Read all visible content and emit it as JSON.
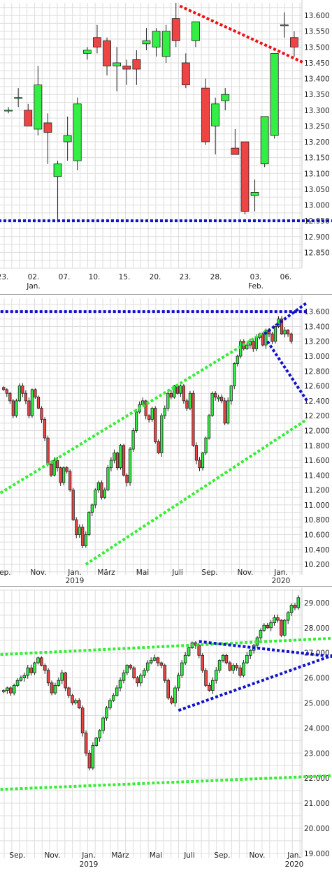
{
  "colors": {
    "up": "#33ee44",
    "down": "#ee4444",
    "grid": "#dddddd",
    "blue_line": "#1111cc",
    "green_line": "#33ee33",
    "red_line": "#ee1111"
  },
  "chart_data": [
    {
      "type": "candlestick",
      "ylim": [
        12.8,
        13.64
      ],
      "y_ticks": [
        "13.600",
        "13.550",
        "13.500",
        "13.450",
        "13.400",
        "13.350",
        "13.300",
        "13.250",
        "13.200",
        "13.150",
        "13.100",
        "13.050",
        "13.000",
        "12.950",
        "12.900",
        "12.850"
      ],
      "x_ticks": [
        {
          "label": "23.",
          "sub": ""
        },
        {
          "label": "02.",
          "sub": "Jan."
        },
        {
          "label": "07.",
          "sub": ""
        },
        {
          "label": "10.",
          "sub": ""
        },
        {
          "label": "15.",
          "sub": ""
        },
        {
          "label": "20.",
          "sub": ""
        },
        {
          "label": "23.",
          "sub": ""
        },
        {
          "label": "28.",
          "sub": ""
        },
        {
          "label": "03.",
          "sub": "Feb."
        },
        {
          "label": "06.",
          "sub": ""
        }
      ],
      "candles": [
        {
          "o": 13.3,
          "h": 13.31,
          "l": 13.29,
          "c": 13.3
        },
        {
          "o": 13.34,
          "h": 13.37,
          "l": 13.31,
          "c": 13.34
        },
        {
          "o": 13.3,
          "h": 13.32,
          "l": 13.25,
          "c": 13.25
        },
        {
          "o": 13.24,
          "h": 13.44,
          "l": 13.22,
          "c": 13.38
        },
        {
          "o": 13.26,
          "h": 13.29,
          "l": 13.13,
          "c": 13.23
        },
        {
          "o": 13.09,
          "h": 13.14,
          "l": 12.95,
          "c": 13.13
        },
        {
          "o": 13.2,
          "h": 13.28,
          "l": 13.14,
          "c": 13.22
        },
        {
          "o": 13.14,
          "h": 13.34,
          "l": 13.11,
          "c": 13.32
        },
        {
          "o": 13.48,
          "h": 13.5,
          "l": 13.46,
          "c": 13.49
        },
        {
          "o": 13.53,
          "h": 13.57,
          "l": 13.48,
          "c": 13.5
        },
        {
          "o": 13.52,
          "h": 13.53,
          "l": 13.41,
          "c": 13.44
        },
        {
          "o": 13.44,
          "h": 13.5,
          "l": 13.36,
          "c": 13.45
        },
        {
          "o": 13.44,
          "h": 13.46,
          "l": 13.38,
          "c": 13.43
        },
        {
          "o": 13.46,
          "h": 13.49,
          "l": 13.38,
          "c": 13.43
        },
        {
          "o": 13.51,
          "h": 13.56,
          "l": 13.49,
          "c": 13.52
        },
        {
          "o": 13.5,
          "h": 13.56,
          "l": 13.47,
          "c": 13.55
        },
        {
          "o": 13.47,
          "h": 13.57,
          "l": 13.45,
          "c": 13.55
        },
        {
          "o": 13.59,
          "h": 13.64,
          "l": 13.5,
          "c": 13.52
        },
        {
          "o": 13.45,
          "h": 13.48,
          "l": 13.37,
          "c": 13.38
        },
        {
          "o": 13.52,
          "h": 13.58,
          "l": 13.5,
          "c": 13.58
        },
        {
          "o": 13.37,
          "h": 13.4,
          "l": 13.19,
          "c": 13.2
        },
        {
          "o": 13.25,
          "h": 13.34,
          "l": 13.16,
          "c": 13.32
        },
        {
          "o": 13.33,
          "h": 13.37,
          "l": 13.3,
          "c": 13.35
        },
        {
          "o": 13.18,
          "h": 13.24,
          "l": 13.16,
          "c": 13.16
        },
        {
          "o": 13.2,
          "h": 13.2,
          "l": 12.97,
          "c": 12.98
        },
        {
          "o": 13.03,
          "h": 13.08,
          "l": 12.98,
          "c": 13.04
        },
        {
          "o": 13.13,
          "h": 13.28,
          "l": 13.12,
          "c": 13.28
        },
        {
          "o": 13.22,
          "h": 13.48,
          "l": 13.21,
          "c": 13.48
        },
        {
          "o": 13.57,
          "h": 13.61,
          "l": 13.53,
          "c": 13.57
        },
        {
          "o": 13.53,
          "h": 13.55,
          "l": 13.47,
          "c": 13.5
        }
      ],
      "trend_lines": [
        {
          "color": "blue",
          "points": [
            [
              -1,
              12.95
            ],
            [
              33,
              12.95
            ]
          ]
        },
        {
          "color": "red",
          "points": [
            [
              17.4,
              13.63
            ],
            [
              30,
              13.45
            ]
          ]
        }
      ]
    },
    {
      "type": "candlestick",
      "ylim": [
        10.06,
        13.78
      ],
      "y_ticks": [
        "13.600",
        "13.400",
        "13.200",
        "13.000",
        "12.800",
        "12.600",
        "12.400",
        "12.200",
        "12.000",
        "11.800",
        "11.600",
        "11.400",
        "11.200",
        "11.000",
        "10.800",
        "10.600",
        "10.400",
        "10.200"
      ],
      "x_ticks": [
        {
          "label": "Sep.",
          "sub": ""
        },
        {
          "label": "Nov.",
          "sub": ""
        },
        {
          "label": "Jan.",
          "sub": "2019"
        },
        {
          "label": "März",
          "sub": ""
        },
        {
          "label": "Mai",
          "sub": ""
        },
        {
          "label": "Juli",
          "sub": ""
        },
        {
          "label": "Sep.",
          "sub": ""
        },
        {
          "label": "Nov.",
          "sub": ""
        },
        {
          "label": "Jan.",
          "sub": "2020"
        }
      ],
      "closes": [
        12.55,
        12.5,
        12.4,
        12.2,
        12.4,
        12.6,
        12.5,
        12.4,
        12.2,
        12.55,
        12.45,
        12.3,
        12.15,
        11.9,
        11.55,
        11.4,
        11.6,
        11.5,
        11.3,
        11.5,
        11.45,
        11.2,
        10.8,
        10.6,
        10.7,
        10.45,
        10.6,
        10.9,
        11.0,
        11.2,
        11.3,
        11.1,
        11.2,
        11.5,
        11.6,
        11.7,
        11.5,
        11.8,
        11.4,
        11.3,
        11.75,
        12.0,
        12.25,
        12.35,
        12.4,
        12.2,
        12.15,
        12.3,
        11.85,
        11.7,
        12.2,
        12.3,
        12.5,
        12.45,
        12.6,
        12.5,
        12.6,
        12.4,
        12.3,
        12.5,
        11.8,
        11.6,
        11.5,
        11.7,
        11.9,
        12.2,
        12.5,
        12.45,
        12.45,
        12.4,
        12.1,
        12.4,
        12.6,
        12.9,
        13.0,
        13.2,
        13.1,
        13.15,
        13.2,
        13.1,
        13.25,
        13.3,
        13.15,
        13.35,
        13.3,
        13.2,
        13.4,
        13.5,
        13.3,
        13.35,
        13.3,
        13.2
      ],
      "trend_lines": [
        {
          "color": "blue",
          "points": [
            [
              -1,
              13.6
            ],
            [
              96,
              13.6
            ]
          ]
        },
        {
          "color": "green",
          "points": [
            [
              -1,
              11.16
            ],
            [
              83.5,
              13.35
            ]
          ]
        },
        {
          "color": "green",
          "points": [
            [
              26,
              10.2
            ],
            [
              96,
              12.15
            ]
          ]
        },
        {
          "color": "blue",
          "points": [
            [
              83.5,
              13.2
            ],
            [
              96,
              12.4
            ]
          ]
        },
        {
          "color": "blue",
          "points": [
            [
              82.5,
              13.3
            ],
            [
              96,
              13.72
            ]
          ]
        }
      ]
    },
    {
      "type": "candlestick",
      "ylim": [
        18.8,
        29.5
      ],
      "y_ticks": [
        "29.000",
        "28.000",
        "27.000",
        "26.000",
        "25.000",
        "24.000",
        "23.000",
        "22.000",
        "21.000",
        "20.000",
        "19.000"
      ],
      "x_ticks": [
        {
          "label": "Sep.",
          "sub": ""
        },
        {
          "label": "Nov.",
          "sub": ""
        },
        {
          "label": "Jan.",
          "sub": "2019"
        },
        {
          "label": "März",
          "sub": ""
        },
        {
          "label": "Mai",
          "sub": ""
        },
        {
          "label": "Juli",
          "sub": ""
        },
        {
          "label": "Sep.",
          "sub": ""
        },
        {
          "label": "Nov.",
          "sub": ""
        },
        {
          "label": "Jan.",
          "sub": "2020"
        }
      ],
      "closes": [
        25.5,
        25.6,
        25.4,
        25.7,
        25.9,
        26.0,
        26.1,
        26.4,
        26.2,
        26.6,
        26.8,
        26.5,
        26.3,
        25.8,
        25.4,
        25.7,
        25.9,
        26.2,
        25.6,
        25.3,
        25.0,
        25.1,
        24.8,
        23.8,
        23.0,
        22.4,
        23.3,
        23.6,
        23.9,
        24.4,
        24.8,
        25.1,
        25.3,
        25.6,
        25.9,
        26.2,
        26.5,
        26.4,
        26.0,
        25.8,
        26.1,
        26.3,
        26.6,
        26.7,
        26.8,
        26.6,
        26.5,
        25.9,
        25.2,
        25.0,
        25.6,
        26.1,
        26.6,
        26.9,
        27.2,
        27.4,
        27.3,
        26.9,
        26.3,
        25.7,
        25.5,
        25.9,
        26.3,
        26.7,
        26.9,
        26.6,
        26.3,
        26.5,
        26.4,
        26.1,
        26.6,
        26.9,
        27.1,
        27.3,
        27.6,
        27.9,
        28.1,
        28.0,
        28.2,
        28.4,
        28.3,
        27.7,
        28.3,
        28.6,
        28.9,
        28.8,
        29.2
      ],
      "trend_lines": [
        {
          "color": "green",
          "points": [
            [
              -1,
              26.93
            ],
            [
              96,
              27.58
            ]
          ]
        },
        {
          "color": "green",
          "points": [
            [
              -1,
              21.55
            ],
            [
              96,
              22.1
            ]
          ]
        },
        {
          "color": "blue",
          "points": [
            [
              51,
              24.7
            ],
            [
              96,
              26.9
            ]
          ]
        },
        {
          "color": "blue",
          "points": [
            [
              57,
              27.45
            ],
            [
              96,
              26.85
            ]
          ]
        }
      ]
    }
  ]
}
